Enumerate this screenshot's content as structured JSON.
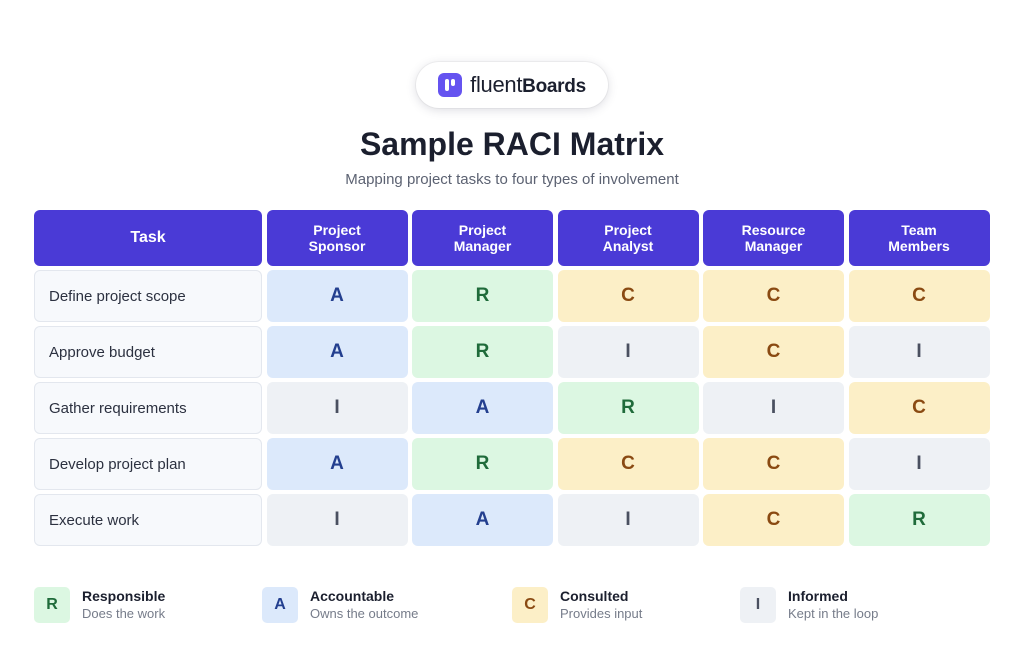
{
  "logo": {
    "light": "fluent",
    "bold": "Boards",
    "icon": "fluentboards-logo-icon"
  },
  "title": "Sample RACI Matrix",
  "subtitle": "Mapping project tasks to four types of involvement",
  "headers": [
    "Task",
    "Project\nSponsor",
    "Project\nManager",
    "Project\nAnalyst",
    "Resource\nManager",
    "Team\nMembers"
  ],
  "rows": [
    {
      "task": "Define project scope",
      "cells": [
        "A",
        "R",
        "C",
        "C",
        "C"
      ]
    },
    {
      "task": "Approve budget",
      "cells": [
        "A",
        "R",
        "I",
        "C",
        "I"
      ]
    },
    {
      "task": "Gather requirements",
      "cells": [
        "I",
        "A",
        "R",
        "I",
        "C"
      ]
    },
    {
      "task": "Develop project plan",
      "cells": [
        "A",
        "R",
        "C",
        "C",
        "I"
      ]
    },
    {
      "task": "Execute work",
      "cells": [
        "I",
        "A",
        "I",
        "C",
        "R"
      ]
    }
  ],
  "legend": [
    {
      "code": "R",
      "name": "Responsible",
      "desc": "Does the work"
    },
    {
      "code": "A",
      "name": "Accountable",
      "desc": "Owns the outcome"
    },
    {
      "code": "C",
      "name": "Consulted",
      "desc": "Provides input"
    },
    {
      "code": "I",
      "name": "Informed",
      "desc": "Kept in the loop"
    }
  ],
  "colors": {
    "header": "#4a3ad6",
    "R": "#dcf7e2",
    "A": "#dce9fb",
    "C": "#fcefc7",
    "I": "#eef1f5"
  }
}
